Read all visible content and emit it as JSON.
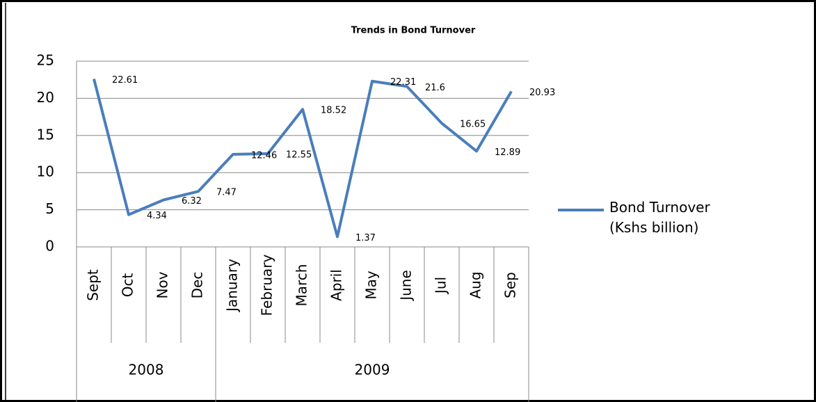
{
  "chart_data": {
    "type": "line",
    "title": "Trends in Bond Turnover",
    "categories": [
      "Sept",
      "Oct",
      "Nov",
      "Dec",
      "January",
      "February",
      "March",
      "April",
      "May",
      "June",
      "Jul",
      "Aug",
      "Sep"
    ],
    "groups": [
      {
        "label": "2008",
        "span": 4
      },
      {
        "label": "2009",
        "span": 9
      }
    ],
    "series": [
      {
        "name": "Bond Turnover (Kshs billion)",
        "color": "#4a7ebb",
        "values": [
          22.61,
          4.34,
          6.32,
          7.47,
          12.46,
          12.55,
          18.52,
          1.37,
          22.31,
          21.6,
          16.65,
          12.89,
          20.93
        ]
      }
    ],
    "ylim": [
      0,
      25
    ],
    "yticks": [
      0,
      5,
      10,
      15,
      20,
      25
    ],
    "grid": true,
    "legend": "right"
  }
}
